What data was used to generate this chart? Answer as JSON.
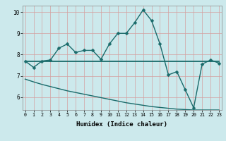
{
  "xlabel": "Humidex (Indice chaleur)",
  "background_color": "#cce9ec",
  "grid_color": "#d4a0a0",
  "line_color": "#1a6b6b",
  "x": [
    0,
    1,
    2,
    3,
    4,
    5,
    6,
    7,
    8,
    9,
    10,
    11,
    12,
    13,
    14,
    15,
    16,
    17,
    18,
    19,
    20,
    21,
    22,
    23
  ],
  "line1": [
    7.7,
    7.4,
    7.7,
    7.75,
    8.3,
    8.5,
    8.1,
    8.2,
    8.2,
    7.78,
    8.5,
    9.0,
    9.0,
    9.5,
    10.1,
    9.6,
    8.5,
    7.05,
    7.2,
    6.35,
    5.5,
    7.55,
    7.75,
    7.6
  ],
  "line2": [
    7.7,
    7.7,
    7.7,
    7.7,
    7.7,
    7.7,
    7.7,
    7.7,
    7.7,
    7.7,
    7.7,
    7.7,
    7.7,
    7.7,
    7.7,
    7.7,
    7.7,
    7.7,
    7.7,
    7.7,
    7.7,
    7.7,
    7.7,
    7.7
  ],
  "line3": [
    6.85,
    6.72,
    6.6,
    6.5,
    6.4,
    6.3,
    6.22,
    6.14,
    6.06,
    5.98,
    5.9,
    5.82,
    5.74,
    5.68,
    5.62,
    5.56,
    5.52,
    5.48,
    5.44,
    5.42,
    5.4,
    5.4,
    5.4,
    5.4
  ],
  "xlim": [
    0,
    23
  ],
  "ylim": [
    5.4,
    10.3
  ],
  "yticks": [
    6,
    7,
    8,
    9,
    10
  ],
  "xticks": [
    0,
    1,
    2,
    3,
    4,
    5,
    6,
    7,
    8,
    9,
    10,
    11,
    12,
    13,
    14,
    15,
    16,
    17,
    18,
    19,
    20,
    21,
    22,
    23
  ],
  "markersize": 2.5,
  "linewidth": 1.0
}
